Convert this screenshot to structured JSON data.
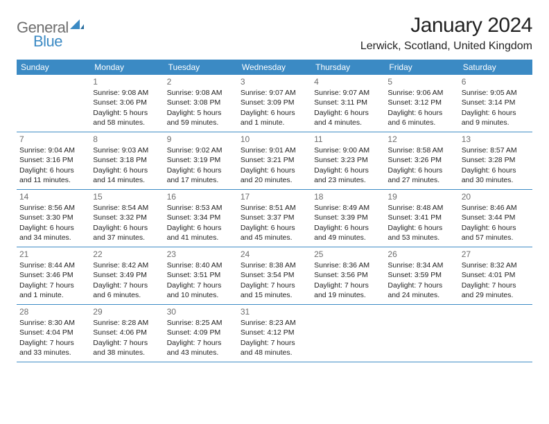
{
  "brand": {
    "general": "General",
    "blue": "Blue"
  },
  "title": "January 2024",
  "location": "Lerwick, Scotland, United Kingdom",
  "colors": {
    "header_bg": "#3b8ac4",
    "header_text": "#ffffff",
    "body_text": "#222222",
    "muted_text": "#6d6d6d",
    "rule": "#3b8ac4",
    "page_bg": "#ffffff"
  },
  "day_names": [
    "Sunday",
    "Monday",
    "Tuesday",
    "Wednesday",
    "Thursday",
    "Friday",
    "Saturday"
  ],
  "weeks": [
    [
      {
        "num": "",
        "sunrise": "",
        "sunset": "",
        "daylight": ""
      },
      {
        "num": "1",
        "sunrise": "Sunrise: 9:08 AM",
        "sunset": "Sunset: 3:06 PM",
        "daylight": "Daylight: 5 hours and 58 minutes."
      },
      {
        "num": "2",
        "sunrise": "Sunrise: 9:08 AM",
        "sunset": "Sunset: 3:08 PM",
        "daylight": "Daylight: 5 hours and 59 minutes."
      },
      {
        "num": "3",
        "sunrise": "Sunrise: 9:07 AM",
        "sunset": "Sunset: 3:09 PM",
        "daylight": "Daylight: 6 hours and 1 minute."
      },
      {
        "num": "4",
        "sunrise": "Sunrise: 9:07 AM",
        "sunset": "Sunset: 3:11 PM",
        "daylight": "Daylight: 6 hours and 4 minutes."
      },
      {
        "num": "5",
        "sunrise": "Sunrise: 9:06 AM",
        "sunset": "Sunset: 3:12 PM",
        "daylight": "Daylight: 6 hours and 6 minutes."
      },
      {
        "num": "6",
        "sunrise": "Sunrise: 9:05 AM",
        "sunset": "Sunset: 3:14 PM",
        "daylight": "Daylight: 6 hours and 9 minutes."
      }
    ],
    [
      {
        "num": "7",
        "sunrise": "Sunrise: 9:04 AM",
        "sunset": "Sunset: 3:16 PM",
        "daylight": "Daylight: 6 hours and 11 minutes."
      },
      {
        "num": "8",
        "sunrise": "Sunrise: 9:03 AM",
        "sunset": "Sunset: 3:18 PM",
        "daylight": "Daylight: 6 hours and 14 minutes."
      },
      {
        "num": "9",
        "sunrise": "Sunrise: 9:02 AM",
        "sunset": "Sunset: 3:19 PM",
        "daylight": "Daylight: 6 hours and 17 minutes."
      },
      {
        "num": "10",
        "sunrise": "Sunrise: 9:01 AM",
        "sunset": "Sunset: 3:21 PM",
        "daylight": "Daylight: 6 hours and 20 minutes."
      },
      {
        "num": "11",
        "sunrise": "Sunrise: 9:00 AM",
        "sunset": "Sunset: 3:23 PM",
        "daylight": "Daylight: 6 hours and 23 minutes."
      },
      {
        "num": "12",
        "sunrise": "Sunrise: 8:58 AM",
        "sunset": "Sunset: 3:26 PM",
        "daylight": "Daylight: 6 hours and 27 minutes."
      },
      {
        "num": "13",
        "sunrise": "Sunrise: 8:57 AM",
        "sunset": "Sunset: 3:28 PM",
        "daylight": "Daylight: 6 hours and 30 minutes."
      }
    ],
    [
      {
        "num": "14",
        "sunrise": "Sunrise: 8:56 AM",
        "sunset": "Sunset: 3:30 PM",
        "daylight": "Daylight: 6 hours and 34 minutes."
      },
      {
        "num": "15",
        "sunrise": "Sunrise: 8:54 AM",
        "sunset": "Sunset: 3:32 PM",
        "daylight": "Daylight: 6 hours and 37 minutes."
      },
      {
        "num": "16",
        "sunrise": "Sunrise: 8:53 AM",
        "sunset": "Sunset: 3:34 PM",
        "daylight": "Daylight: 6 hours and 41 minutes."
      },
      {
        "num": "17",
        "sunrise": "Sunrise: 8:51 AM",
        "sunset": "Sunset: 3:37 PM",
        "daylight": "Daylight: 6 hours and 45 minutes."
      },
      {
        "num": "18",
        "sunrise": "Sunrise: 8:49 AM",
        "sunset": "Sunset: 3:39 PM",
        "daylight": "Daylight: 6 hours and 49 minutes."
      },
      {
        "num": "19",
        "sunrise": "Sunrise: 8:48 AM",
        "sunset": "Sunset: 3:41 PM",
        "daylight": "Daylight: 6 hours and 53 minutes."
      },
      {
        "num": "20",
        "sunrise": "Sunrise: 8:46 AM",
        "sunset": "Sunset: 3:44 PM",
        "daylight": "Daylight: 6 hours and 57 minutes."
      }
    ],
    [
      {
        "num": "21",
        "sunrise": "Sunrise: 8:44 AM",
        "sunset": "Sunset: 3:46 PM",
        "daylight": "Daylight: 7 hours and 1 minute."
      },
      {
        "num": "22",
        "sunrise": "Sunrise: 8:42 AM",
        "sunset": "Sunset: 3:49 PM",
        "daylight": "Daylight: 7 hours and 6 minutes."
      },
      {
        "num": "23",
        "sunrise": "Sunrise: 8:40 AM",
        "sunset": "Sunset: 3:51 PM",
        "daylight": "Daylight: 7 hours and 10 minutes."
      },
      {
        "num": "24",
        "sunrise": "Sunrise: 8:38 AM",
        "sunset": "Sunset: 3:54 PM",
        "daylight": "Daylight: 7 hours and 15 minutes."
      },
      {
        "num": "25",
        "sunrise": "Sunrise: 8:36 AM",
        "sunset": "Sunset: 3:56 PM",
        "daylight": "Daylight: 7 hours and 19 minutes."
      },
      {
        "num": "26",
        "sunrise": "Sunrise: 8:34 AM",
        "sunset": "Sunset: 3:59 PM",
        "daylight": "Daylight: 7 hours and 24 minutes."
      },
      {
        "num": "27",
        "sunrise": "Sunrise: 8:32 AM",
        "sunset": "Sunset: 4:01 PM",
        "daylight": "Daylight: 7 hours and 29 minutes."
      }
    ],
    [
      {
        "num": "28",
        "sunrise": "Sunrise: 8:30 AM",
        "sunset": "Sunset: 4:04 PM",
        "daylight": "Daylight: 7 hours and 33 minutes."
      },
      {
        "num": "29",
        "sunrise": "Sunrise: 8:28 AM",
        "sunset": "Sunset: 4:06 PM",
        "daylight": "Daylight: 7 hours and 38 minutes."
      },
      {
        "num": "30",
        "sunrise": "Sunrise: 8:25 AM",
        "sunset": "Sunset: 4:09 PM",
        "daylight": "Daylight: 7 hours and 43 minutes."
      },
      {
        "num": "31",
        "sunrise": "Sunrise: 8:23 AM",
        "sunset": "Sunset: 4:12 PM",
        "daylight": "Daylight: 7 hours and 48 minutes."
      },
      {
        "num": "",
        "sunrise": "",
        "sunset": "",
        "daylight": ""
      },
      {
        "num": "",
        "sunrise": "",
        "sunset": "",
        "daylight": ""
      },
      {
        "num": "",
        "sunrise": "",
        "sunset": "",
        "daylight": ""
      }
    ]
  ]
}
